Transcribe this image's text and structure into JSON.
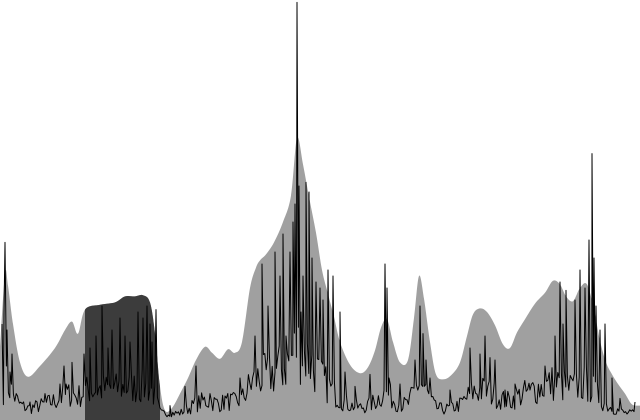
{
  "chart_data": {
    "type": "area",
    "title": "",
    "xlabel": "",
    "ylabel": "",
    "xlim": [
      0,
      640
    ],
    "ylim": [
      0,
      350
    ],
    "grid": false,
    "legend": "none",
    "colors": {
      "background": "#ffffff",
      "envelope": "#a0a0a0",
      "selection": "#3c3c3c",
      "signal": "#000000"
    },
    "selection_range": [
      85,
      160
    ],
    "envelope": {
      "x": [
        0,
        5,
        8,
        13,
        20,
        28,
        40,
        55,
        65,
        72,
        78,
        85,
        100,
        115,
        125,
        135,
        143,
        150,
        155,
        160,
        165,
        172,
        180,
        188,
        196,
        205,
        212,
        220,
        228,
        235,
        242,
        250,
        256,
        260,
        266,
        274,
        283,
        291,
        297,
        303,
        309,
        316,
        322,
        328,
        334,
        340,
        350,
        360,
        368,
        375,
        381,
        387,
        393,
        400,
        408,
        414,
        419,
        424,
        430,
        436,
        444,
        452,
        460,
        467,
        473,
        480,
        487,
        495,
        503,
        510,
        517,
        525,
        535,
        545,
        553,
        560,
        566,
        573,
        580,
        587,
        594,
        600,
        606,
        612,
        618,
        625,
        632,
        640
      ],
      "y": [
        60,
        122,
        112,
        80,
        48,
        36,
        45,
        60,
        75,
        82,
        72,
        92,
        96,
        98,
        103,
        103,
        104,
        98,
        72,
        28,
        8,
        10,
        22,
        35,
        50,
        61,
        56,
        51,
        59,
        56,
        65,
        110,
        127,
        133,
        138,
        148,
        165,
        187,
        235,
        213,
        186,
        156,
        125,
        105,
        86,
        65,
        46,
        39,
        44,
        58,
        77,
        84,
        65,
        48,
        50,
        85,
        120,
        101,
        65,
        38,
        34,
        38,
        48,
        70,
        88,
        93,
        90,
        79,
        63,
        60,
        73,
        84,
        97,
        106,
        116,
        113,
        103,
        99,
        110,
        113,
        92,
        66,
        48,
        38,
        30,
        22,
        13,
        12
      ]
    },
    "signal_peaks": {
      "x": [
        2,
        4,
        5,
        7,
        10,
        12,
        18,
        30,
        45,
        60,
        64,
        66,
        72,
        84,
        90,
        96,
        102,
        108,
        112,
        120,
        125,
        130,
        138,
        143,
        147,
        150,
        152,
        156,
        160,
        170,
        185,
        196,
        210,
        225,
        240,
        255,
        262,
        268,
        275,
        280,
        283,
        286,
        290,
        293,
        295,
        297,
        299,
        301,
        303,
        306,
        309,
        312,
        316,
        320,
        323,
        328,
        333,
        340,
        345,
        355,
        370,
        385,
        387,
        389,
        400,
        415,
        420,
        423,
        426,
        430,
        450,
        470,
        480,
        485,
        490,
        495,
        505,
        515,
        530,
        545,
        555,
        560,
        563,
        566,
        575,
        580,
        585,
        589,
        592,
        594,
        596,
        600,
        605,
        612,
        620,
        635
      ],
      "y": [
        80,
        90,
        148,
        75,
        40,
        55,
        18,
        15,
        22,
        30,
        45,
        30,
        48,
        55,
        60,
        70,
        95,
        60,
        75,
        85,
        70,
        65,
        90,
        85,
        95,
        80,
        65,
        92,
        10,
        12,
        28,
        45,
        22,
        20,
        35,
        70,
        130,
        95,
        140,
        120,
        155,
        70,
        140,
        165,
        180,
        348,
        195,
        90,
        120,
        198,
        190,
        135,
        115,
        110,
        100,
        125,
        120,
        90,
        40,
        28,
        38,
        130,
        110,
        35,
        30,
        50,
        95,
        72,
        50,
        35,
        25,
        60,
        55,
        70,
        52,
        50,
        25,
        30,
        25,
        45,
        70,
        115,
        80,
        108,
        100,
        125,
        110,
        150,
        222,
        135,
        95,
        75,
        80,
        35,
        18,
        15
      ]
    }
  }
}
